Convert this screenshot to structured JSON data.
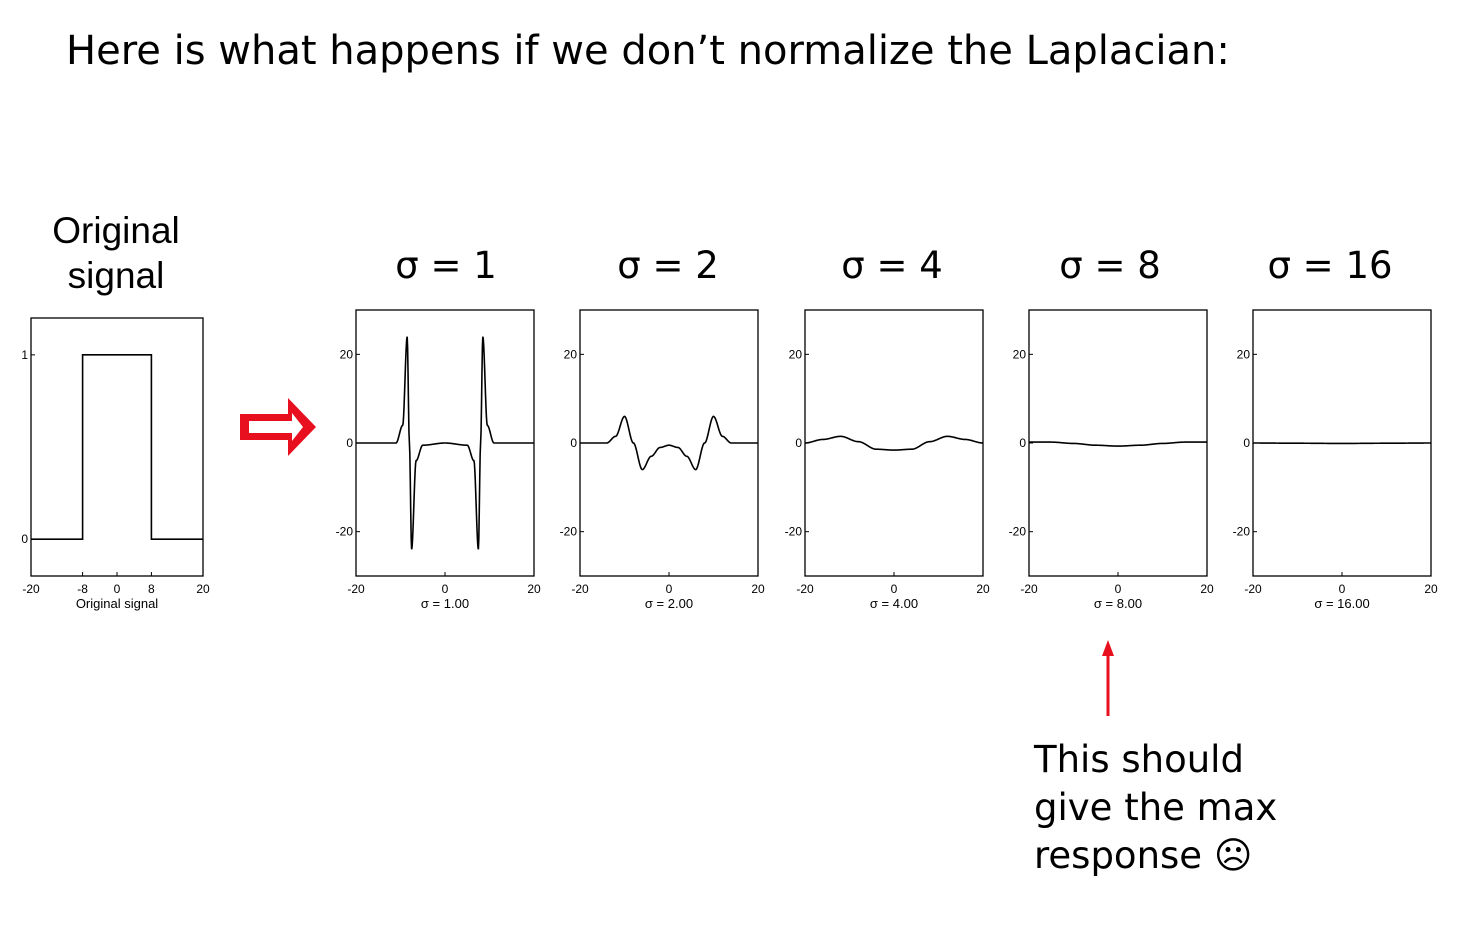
{
  "title": "Here is what happens if we don’t normalize the Laplacian:",
  "original_heading": [
    "Original",
    "signal"
  ],
  "sigma_headings": [
    "σ = 1",
    "σ = 2",
    "σ = 4",
    "σ = 8",
    "σ = 16"
  ],
  "annotation": {
    "lines": [
      "This should",
      "give the max",
      "response"
    ],
    "emoji": "☹"
  },
  "colors": {
    "arrow": "#e8101e",
    "curve": "#000000",
    "axes": "#000000"
  },
  "chart_data": [
    {
      "type": "line",
      "xlabel": "Original signal",
      "xlim": [
        -20,
        20
      ],
      "ylim": [
        -0.2,
        1.2
      ],
      "xticks": [
        -20,
        -8,
        0,
        8,
        20
      ],
      "yticks": [
        0,
        1
      ],
      "series": [
        {
          "x": [
            -20,
            -8,
            -8,
            8,
            8,
            20
          ],
          "y": [
            0,
            0,
            1,
            1,
            0,
            0
          ]
        }
      ]
    },
    {
      "type": "line",
      "xlabel": "σ = 1.00",
      "sigma": 1,
      "xlim": [
        -20,
        20
      ],
      "ylim": [
        -30,
        30
      ],
      "xticks": [
        -20,
        0,
        20
      ],
      "yticks": [
        -20,
        0,
        20
      ],
      "series": [
        {
          "x": [
            -20,
            -11,
            -9.5,
            -8.5,
            -8,
            -7.5,
            -6.5,
            -5,
            0,
            5,
            6.5,
            7.5,
            8,
            8.5,
            9.5,
            11,
            20
          ],
          "y": [
            0,
            0,
            4,
            24,
            0,
            -24,
            -4,
            -0.5,
            0,
            -0.5,
            -4,
            -24,
            0,
            24,
            4,
            0,
            0
          ]
        }
      ]
    },
    {
      "type": "line",
      "xlabel": "σ = 2.00",
      "sigma": 2,
      "xlim": [
        -20,
        20
      ],
      "ylim": [
        -30,
        30
      ],
      "xticks": [
        -20,
        0,
        20
      ],
      "yticks": [
        -20,
        0,
        20
      ],
      "series": [
        {
          "x": [
            -20,
            -14,
            -12,
            -10,
            -8,
            -6,
            -4,
            -2,
            0,
            2,
            4,
            6,
            8,
            10,
            12,
            14,
            20
          ],
          "y": [
            0,
            0,
            1.5,
            6,
            0,
            -6,
            -3,
            -1,
            -0.5,
            -1,
            -3,
            -6,
            0,
            6,
            1.5,
            0,
            0
          ]
        }
      ]
    },
    {
      "type": "line",
      "xlabel": "σ = 4.00",
      "sigma": 4,
      "xlim": [
        -20,
        20
      ],
      "ylim": [
        -30,
        30
      ],
      "xticks": [
        -20,
        0,
        20
      ],
      "yticks": [
        -20,
        0,
        20
      ],
      "series": [
        {
          "x": [
            -20,
            -16,
            -12,
            -8,
            -4,
            0,
            4,
            8,
            12,
            16,
            20
          ],
          "y": [
            0,
            0.8,
            1.5,
            0.3,
            -1.4,
            -1.6,
            -1.4,
            0.3,
            1.5,
            0.8,
            0
          ]
        }
      ]
    },
    {
      "type": "line",
      "xlabel": "σ = 8.00",
      "sigma": 8,
      "xlim": [
        -20,
        20
      ],
      "ylim": [
        -30,
        30
      ],
      "xticks": [
        -20,
        0,
        20
      ],
      "yticks": [
        -20,
        0,
        20
      ],
      "series": [
        {
          "x": [
            -20,
            -15,
            -10,
            -5,
            0,
            5,
            10,
            15,
            20
          ],
          "y": [
            0.2,
            0.2,
            -0.1,
            -0.5,
            -0.7,
            -0.5,
            -0.1,
            0.2,
            0.2
          ]
        }
      ]
    },
    {
      "type": "line",
      "xlabel": "σ = 16.00",
      "sigma": 16,
      "xlim": [
        -20,
        20
      ],
      "ylim": [
        -30,
        30
      ],
      "xticks": [
        -20,
        0,
        20
      ],
      "yticks": [
        -20,
        0,
        20
      ],
      "series": [
        {
          "x": [
            -20,
            -10,
            0,
            10,
            20
          ],
          "y": [
            0,
            -0.05,
            -0.1,
            -0.05,
            0
          ]
        }
      ]
    }
  ]
}
